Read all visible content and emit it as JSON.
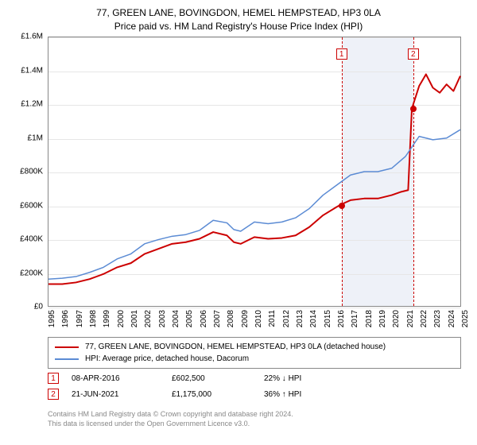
{
  "title": {
    "line1": "77, GREEN LANE, BOVINGDON, HEMEL HEMPSTEAD, HP3 0LA",
    "line2": "Price paid vs. HM Land Registry's House Price Index (HPI)"
  },
  "chart": {
    "type": "line",
    "x_range": [
      1995,
      2025
    ],
    "y_range": [
      0,
      1600000
    ],
    "y_ticks": [
      0,
      200000,
      400000,
      600000,
      800000,
      1000000,
      1200000,
      1400000,
      1600000
    ],
    "y_tick_labels": [
      "£0",
      "£200K",
      "£400K",
      "£600K",
      "£800K",
      "£1M",
      "£1.2M",
      "£1.4M",
      "£1.6M"
    ],
    "x_ticks": [
      1995,
      1996,
      1997,
      1998,
      1999,
      2000,
      2001,
      2002,
      2003,
      2004,
      2005,
      2006,
      2007,
      2008,
      2009,
      2010,
      2011,
      2012,
      2013,
      2014,
      2015,
      2016,
      2017,
      2018,
      2019,
      2020,
      2021,
      2022,
      2023,
      2024,
      2025
    ],
    "grid_color": "#e6e6e6",
    "axis_color": "#888888",
    "background": "#ffffff",
    "shaded_ranges": [
      {
        "x0": 2016.27,
        "x1": 2021.47,
        "color": "#eef1f8"
      }
    ],
    "vlines": [
      {
        "x": 2016.27,
        "color": "#cc0000",
        "marker": "1",
        "marker_y": 1500000
      },
      {
        "x": 2021.47,
        "color": "#cc0000",
        "marker": "2",
        "marker_y": 1500000
      }
    ],
    "series": [
      {
        "name": "price_paid",
        "label": "77, GREEN LANE, BOVINGDON, HEMEL HEMPSTEAD, HP3 0LA (detached house)",
        "color": "#cc0000",
        "width": 2,
        "points": [
          [
            1995,
            130000
          ],
          [
            1996,
            130000
          ],
          [
            1997,
            140000
          ],
          [
            1998,
            160000
          ],
          [
            1999,
            190000
          ],
          [
            2000,
            230000
          ],
          [
            2001,
            255000
          ],
          [
            2002,
            310000
          ],
          [
            2003,
            340000
          ],
          [
            2004,
            370000
          ],
          [
            2005,
            380000
          ],
          [
            2006,
            400000
          ],
          [
            2007,
            440000
          ],
          [
            2008,
            420000
          ],
          [
            2008.5,
            380000
          ],
          [
            2009,
            370000
          ],
          [
            2010,
            410000
          ],
          [
            2011,
            400000
          ],
          [
            2012,
            405000
          ],
          [
            2013,
            420000
          ],
          [
            2014,
            470000
          ],
          [
            2015,
            540000
          ],
          [
            2016,
            590000
          ],
          [
            2016.27,
            602500
          ],
          [
            2017,
            630000
          ],
          [
            2018,
            640000
          ],
          [
            2019,
            640000
          ],
          [
            2020,
            660000
          ],
          [
            2020.7,
            680000
          ],
          [
            2021.2,
            690000
          ],
          [
            2021.47,
            1175000
          ],
          [
            2022,
            1310000
          ],
          [
            2022.5,
            1380000
          ],
          [
            2023,
            1300000
          ],
          [
            2023.5,
            1270000
          ],
          [
            2024,
            1320000
          ],
          [
            2024.5,
            1280000
          ],
          [
            2025,
            1370000
          ]
        ],
        "sale_dots": [
          {
            "x": 2016.27,
            "y": 602500
          },
          {
            "x": 2021.47,
            "y": 1175000
          }
        ]
      },
      {
        "name": "hpi",
        "label": "HPI: Average price, detached house, Dacorum",
        "color": "#5b8bd4",
        "width": 1.5,
        "points": [
          [
            1995,
            160000
          ],
          [
            1996,
            165000
          ],
          [
            1997,
            175000
          ],
          [
            1998,
            200000
          ],
          [
            1999,
            230000
          ],
          [
            2000,
            280000
          ],
          [
            2001,
            310000
          ],
          [
            2002,
            370000
          ],
          [
            2003,
            395000
          ],
          [
            2004,
            415000
          ],
          [
            2005,
            425000
          ],
          [
            2006,
            450000
          ],
          [
            2007,
            510000
          ],
          [
            2008,
            495000
          ],
          [
            2008.5,
            455000
          ],
          [
            2009,
            445000
          ],
          [
            2010,
            500000
          ],
          [
            2011,
            490000
          ],
          [
            2012,
            500000
          ],
          [
            2013,
            525000
          ],
          [
            2014,
            580000
          ],
          [
            2015,
            660000
          ],
          [
            2016,
            720000
          ],
          [
            2017,
            780000
          ],
          [
            2018,
            800000
          ],
          [
            2019,
            800000
          ],
          [
            2020,
            820000
          ],
          [
            2021,
            890000
          ],
          [
            2022,
            1010000
          ],
          [
            2023,
            990000
          ],
          [
            2024,
            1000000
          ],
          [
            2025,
            1050000
          ]
        ]
      }
    ]
  },
  "legend": {
    "border_color": "#888888",
    "items": [
      {
        "color": "#cc0000",
        "label_path": "chart.series.0.label"
      },
      {
        "color": "#5b8bd4",
        "label_path": "chart.series.1.label"
      }
    ]
  },
  "sales": [
    {
      "marker": "1",
      "date": "08-APR-2016",
      "price": "£602,500",
      "delta": "22% ↓ HPI"
    },
    {
      "marker": "2",
      "date": "21-JUN-2021",
      "price": "£1,175,000",
      "delta": "36% ↑ HPI"
    }
  ],
  "footer": {
    "line1": "Contains HM Land Registry data © Crown copyright and database right 2024.",
    "line2": "This data is licensed under the Open Government Licence v3.0."
  },
  "style": {
    "title_fontsize": 12,
    "tick_fontsize": 10,
    "legend_fontsize": 10,
    "footer_fontsize": 9,
    "footer_color": "#888888"
  }
}
